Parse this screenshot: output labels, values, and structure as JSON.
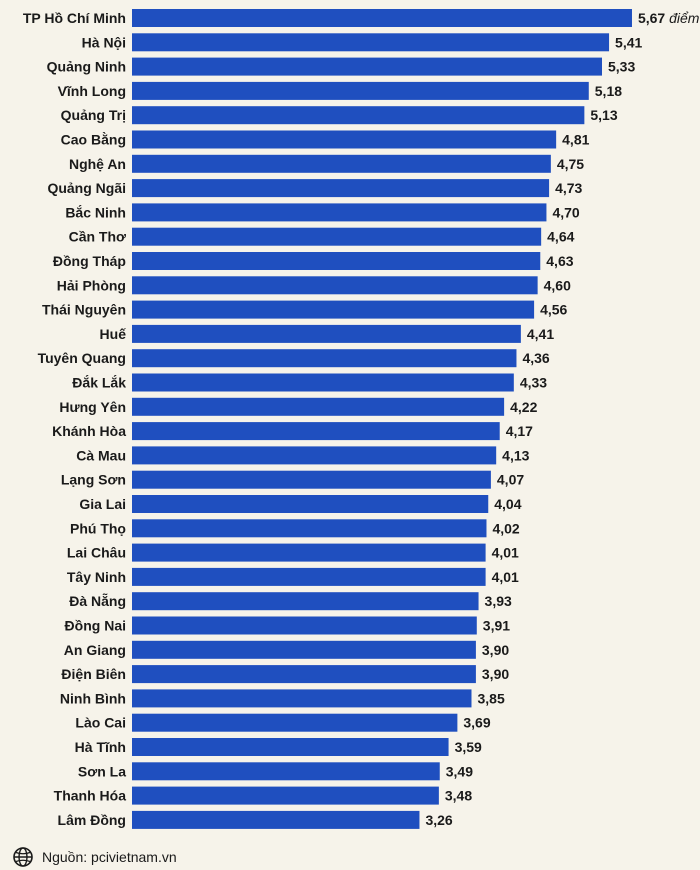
{
  "chart_data": {
    "type": "bar",
    "orientation": "horizontal",
    "categories": [
      "TP Hồ Chí Minh",
      "Hà Nội",
      "Quảng Ninh",
      "Vĩnh Long",
      "Quảng Trị",
      "Cao Bằng",
      "Nghệ An",
      "Quảng Ngãi",
      "Bắc Ninh",
      "Cần Thơ",
      "Đồng Tháp",
      "Hải Phòng",
      "Thái Nguyên",
      "Huế",
      "Tuyên Quang",
      "Đắk Lắk",
      "Hưng Yên",
      "Khánh Hòa",
      "Cà Mau",
      "Lạng Sơn",
      "Gia Lai",
      "Phú Thọ",
      "Lai Châu",
      "Tây Ninh",
      "Đà Nẵng",
      "Đồng Nai",
      "An Giang",
      "Điện Biên",
      "Ninh Bình",
      "Lào Cai",
      "Hà Tĩnh",
      "Sơn La",
      "Thanh Hóa",
      "Lâm Đồng"
    ],
    "values": [
      5.67,
      5.41,
      5.33,
      5.18,
      5.13,
      4.81,
      4.75,
      4.73,
      4.7,
      4.64,
      4.63,
      4.6,
      4.56,
      4.41,
      4.36,
      4.33,
      4.22,
      4.17,
      4.13,
      4.07,
      4.04,
      4.02,
      4.01,
      4.01,
      3.93,
      3.91,
      3.9,
      3.9,
      3.85,
      3.69,
      3.59,
      3.49,
      3.48,
      3.26
    ],
    "value_labels": [
      "5,67",
      "5,41",
      "5,33",
      "5,18",
      "5,13",
      "4,81",
      "4,75",
      "4,73",
      "4,70",
      "4,64",
      "4,63",
      "4,60",
      "4,56",
      "4,41",
      "4,36",
      "4,33",
      "4,22",
      "4,17",
      "4,13",
      "4,07",
      "4,04",
      "4,02",
      "4,01",
      "4,01",
      "3,93",
      "3,91",
      "3,90",
      "3,90",
      "3,85",
      "3,69",
      "3,59",
      "3,49",
      "3,48",
      "3,26"
    ],
    "first_value_suffix": "điểm",
    "bar_color": "#1f4fbf",
    "grid": false,
    "legend": "none"
  },
  "source": {
    "icon": "globe-icon",
    "text": "Nguồn: pcivietnam.vn"
  }
}
